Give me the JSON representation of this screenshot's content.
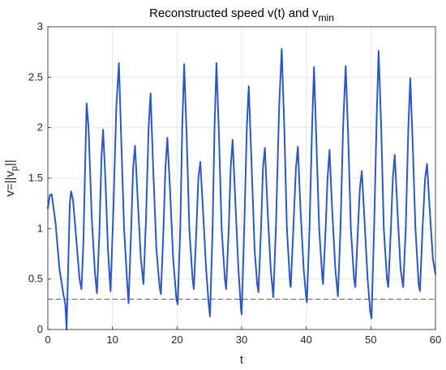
{
  "chart_data": {
    "type": "line",
    "title": "Reconstructed speed v(t) and v",
    "title_subscript": "min",
    "xlabel": "t",
    "ylabel": "v=||v",
    "ylabel_subscript": "p",
    "ylabel_suffix": "||",
    "xlim": [
      0,
      60
    ],
    "ylim": [
      0,
      3
    ],
    "xticks": [
      0,
      10,
      20,
      30,
      40,
      50,
      60
    ],
    "yticks": [
      0,
      0.5,
      1,
      1.5,
      2,
      2.5,
      3
    ],
    "xtick_labels": [
      "0",
      "10",
      "20",
      "30",
      "40",
      "50",
      "60"
    ],
    "ytick_labels": [
      "0",
      "0.5",
      "1",
      "1.5",
      "2",
      "2.5",
      "3"
    ],
    "grid": true,
    "series": [
      {
        "color": "#2b59c3",
        "style": "solid",
        "points": [
          [
            0,
            1.2
          ],
          [
            0.3,
            1.33
          ],
          [
            0.6,
            1.34
          ],
          [
            1.2,
            1.05
          ],
          [
            1.8,
            0.6
          ],
          [
            2.4,
            0.35
          ],
          [
            2.7,
            0.25
          ],
          [
            2.9,
            0.0
          ],
          [
            3.1,
            0.5
          ],
          [
            3.4,
            1.25
          ],
          [
            3.6,
            1.37
          ],
          [
            3.9,
            1.28
          ],
          [
            4.4,
            0.9
          ],
          [
            4.9,
            0.5
          ],
          [
            5.2,
            0.4
          ],
          [
            5.5,
            0.85
          ],
          [
            5.8,
            1.7
          ],
          [
            6.0,
            2.24
          ],
          [
            6.3,
            2.0
          ],
          [
            6.8,
            1.1
          ],
          [
            7.3,
            0.55
          ],
          [
            7.6,
            0.36
          ],
          [
            8.0,
            1.0
          ],
          [
            8.3,
            1.7
          ],
          [
            8.55,
            1.98
          ],
          [
            8.9,
            1.5
          ],
          [
            9.3,
            0.8
          ],
          [
            9.7,
            0.38
          ],
          [
            10.1,
            1.1
          ],
          [
            10.6,
            2.2
          ],
          [
            11.0,
            2.64
          ],
          [
            11.4,
            1.8
          ],
          [
            11.8,
            1.0
          ],
          [
            12.3,
            0.44
          ],
          [
            12.5,
            0.26
          ],
          [
            12.9,
            1.0
          ],
          [
            13.2,
            1.6
          ],
          [
            13.5,
            1.82
          ],
          [
            13.9,
            1.3
          ],
          [
            14.4,
            0.7
          ],
          [
            14.8,
            0.45
          ],
          [
            15.2,
            1.1
          ],
          [
            15.6,
            2.0
          ],
          [
            15.9,
            2.34
          ],
          [
            16.3,
            1.6
          ],
          [
            16.8,
            0.8
          ],
          [
            17.3,
            0.42
          ],
          [
            17.5,
            0.35
          ],
          [
            17.9,
            1.0
          ],
          [
            18.2,
            1.6
          ],
          [
            18.5,
            1.9
          ],
          [
            18.9,
            1.4
          ],
          [
            19.4,
            0.7
          ],
          [
            19.9,
            0.3
          ],
          [
            20.1,
            0.25
          ],
          [
            20.5,
            1.0
          ],
          [
            20.8,
            2.0
          ],
          [
            21.1,
            2.63
          ],
          [
            21.5,
            1.9
          ],
          [
            21.9,
            1.0
          ],
          [
            22.4,
            0.5
          ],
          [
            22.6,
            0.4
          ],
          [
            23.0,
            1.0
          ],
          [
            23.3,
            1.5
          ],
          [
            23.6,
            1.66
          ],
          [
            24.0,
            1.2
          ],
          [
            24.5,
            0.6
          ],
          [
            24.9,
            0.25
          ],
          [
            25.1,
            0.13
          ],
          [
            25.5,
            1.0
          ],
          [
            25.8,
            2.0
          ],
          [
            26.1,
            2.64
          ],
          [
            26.5,
            1.9
          ],
          [
            26.9,
            1.0
          ],
          [
            27.4,
            0.5
          ],
          [
            27.6,
            0.4
          ],
          [
            28.0,
            1.0
          ],
          [
            28.3,
            1.6
          ],
          [
            28.6,
            1.88
          ],
          [
            29.0,
            1.3
          ],
          [
            29.5,
            0.6
          ],
          [
            29.9,
            0.2
          ],
          [
            30.0,
            0.15
          ],
          [
            30.4,
            1.0
          ],
          [
            30.8,
            2.0
          ],
          [
            31.1,
            2.41
          ],
          [
            31.5,
            1.7
          ],
          [
            32.0,
            0.8
          ],
          [
            32.4,
            0.45
          ],
          [
            32.6,
            0.37
          ],
          [
            33.0,
            1.0
          ],
          [
            33.3,
            1.6
          ],
          [
            33.6,
            1.8
          ],
          [
            34.0,
            1.2
          ],
          [
            34.5,
            0.6
          ],
          [
            34.9,
            0.32
          ],
          [
            35.3,
            1.0
          ],
          [
            35.8,
            2.2
          ],
          [
            36.2,
            2.78
          ],
          [
            36.6,
            2.0
          ],
          [
            37.0,
            1.0
          ],
          [
            37.5,
            0.45
          ],
          [
            37.6,
            0.42
          ],
          [
            38.0,
            1.0
          ],
          [
            38.4,
            1.6
          ],
          [
            38.7,
            1.81
          ],
          [
            39.1,
            1.2
          ],
          [
            39.6,
            0.6
          ],
          [
            40.0,
            0.3
          ],
          [
            40.1,
            0.27
          ],
          [
            40.5,
            1.0
          ],
          [
            40.9,
            2.0
          ],
          [
            41.2,
            2.6
          ],
          [
            41.6,
            1.8
          ],
          [
            42.0,
            1.0
          ],
          [
            42.5,
            0.5
          ],
          [
            42.6,
            0.45
          ],
          [
            43.0,
            1.0
          ],
          [
            43.3,
            1.5
          ],
          [
            43.6,
            1.78
          ],
          [
            44.0,
            1.2
          ],
          [
            44.5,
            0.6
          ],
          [
            44.9,
            0.33
          ],
          [
            45.3,
            1.0
          ],
          [
            45.7,
            2.0
          ],
          [
            46.1,
            2.61
          ],
          [
            46.5,
            1.9
          ],
          [
            46.9,
            1.0
          ],
          [
            47.4,
            0.5
          ],
          [
            47.6,
            0.42
          ],
          [
            48.0,
            1.0
          ],
          [
            48.3,
            1.4
          ],
          [
            48.6,
            1.57
          ],
          [
            49.0,
            1.1
          ],
          [
            49.5,
            0.5
          ],
          [
            49.9,
            0.18
          ],
          [
            50.1,
            0.11
          ],
          [
            50.5,
            1.0
          ],
          [
            50.9,
            2.1
          ],
          [
            51.2,
            2.76
          ],
          [
            51.6,
            2.0
          ],
          [
            52.0,
            1.0
          ],
          [
            52.5,
            0.5
          ],
          [
            52.7,
            0.42
          ],
          [
            53.1,
            1.0
          ],
          [
            53.4,
            1.5
          ],
          [
            53.7,
            1.73
          ],
          [
            54.1,
            1.2
          ],
          [
            54.6,
            0.6
          ],
          [
            55.0,
            0.42
          ],
          [
            55.4,
            1.0
          ],
          [
            55.8,
            2.0
          ],
          [
            56.1,
            2.49
          ],
          [
            56.5,
            1.8
          ],
          [
            56.9,
            1.0
          ],
          [
            57.4,
            0.45
          ],
          [
            57.6,
            0.38
          ],
          [
            58.0,
            1.0
          ],
          [
            58.4,
            1.5
          ],
          [
            58.7,
            1.64
          ],
          [
            59.1,
            1.2
          ],
          [
            59.6,
            0.7
          ],
          [
            60.0,
            0.55
          ]
        ]
      },
      {
        "color": "#555555",
        "style": "dashed",
        "points": [
          [
            0,
            0.3
          ],
          [
            60,
            0.3
          ]
        ]
      }
    ]
  }
}
